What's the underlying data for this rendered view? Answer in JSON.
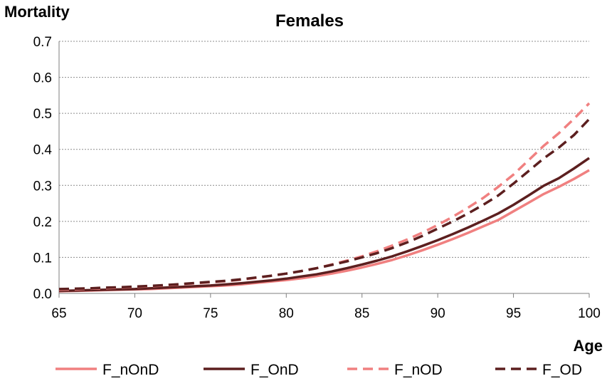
{
  "chart_data": {
    "type": "line",
    "title": "Females",
    "xlabel": "Age",
    "ylabel": "Mortality",
    "xlim": [
      65,
      100
    ],
    "ylim": [
      0,
      0.7
    ],
    "x_ticks": [
      "65",
      "70",
      "75",
      "80",
      "85",
      "90",
      "95",
      "100"
    ],
    "y_ticks": [
      "0.0",
      "0.1",
      "0.2",
      "0.3",
      "0.4",
      "0.5",
      "0.6",
      "0.7"
    ],
    "grid": "horizontal-dashed",
    "legend": "bottom",
    "x": [
      65,
      66,
      67,
      68,
      69,
      70,
      71,
      72,
      73,
      74,
      75,
      76,
      77,
      78,
      79,
      80,
      81,
      82,
      83,
      84,
      85,
      86,
      87,
      88,
      89,
      90,
      91,
      92,
      93,
      94,
      95,
      96,
      97,
      98,
      99,
      100
    ],
    "series": [
      {
        "name": "F_nOnD",
        "color": "#f08080",
        "dash": "solid",
        "values": [
          0.006,
          0.007,
          0.008,
          0.009,
          0.01,
          0.011,
          0.012,
          0.014,
          0.016,
          0.018,
          0.02,
          0.022,
          0.025,
          0.029,
          0.033,
          0.037,
          0.042,
          0.048,
          0.055,
          0.063,
          0.072,
          0.082,
          0.093,
          0.106,
          0.12,
          0.135,
          0.151,
          0.168,
          0.186,
          0.204,
          0.228,
          0.252,
          0.276,
          0.296,
          0.318,
          0.342
        ]
      },
      {
        "name": "F_OnD",
        "color": "#5c1f1f",
        "dash": "solid",
        "values": [
          0.007,
          0.008,
          0.009,
          0.01,
          0.011,
          0.012,
          0.014,
          0.016,
          0.018,
          0.02,
          0.022,
          0.025,
          0.028,
          0.032,
          0.036,
          0.041,
          0.047,
          0.053,
          0.061,
          0.07,
          0.08,
          0.091,
          0.103,
          0.117,
          0.132,
          0.148,
          0.165,
          0.183,
          0.202,
          0.222,
          0.246,
          0.272,
          0.299,
          0.32,
          0.347,
          0.376
        ]
      },
      {
        "name": "F_nOD",
        "color": "#f08080",
        "dash": "dashed",
        "values": [
          0.01,
          0.011,
          0.013,
          0.014,
          0.016,
          0.018,
          0.02,
          0.022,
          0.025,
          0.028,
          0.031,
          0.034,
          0.038,
          0.043,
          0.049,
          0.055,
          0.062,
          0.07,
          0.08,
          0.091,
          0.103,
          0.117,
          0.133,
          0.15,
          0.169,
          0.19,
          0.213,
          0.238,
          0.265,
          0.296,
          0.33,
          0.37,
          0.41,
          0.445,
          0.485,
          0.528
        ]
      },
      {
        "name": "F_OD",
        "color": "#5c1f1f",
        "dash": "dashed",
        "values": [
          0.012,
          0.013,
          0.014,
          0.016,
          0.017,
          0.019,
          0.021,
          0.023,
          0.026,
          0.029,
          0.032,
          0.035,
          0.039,
          0.044,
          0.049,
          0.055,
          0.062,
          0.07,
          0.079,
          0.089,
          0.1,
          0.112,
          0.126,
          0.142,
          0.16,
          0.18,
          0.2,
          0.222,
          0.246,
          0.272,
          0.305,
          0.34,
          0.375,
          0.405,
          0.44,
          0.484
        ]
      }
    ]
  }
}
